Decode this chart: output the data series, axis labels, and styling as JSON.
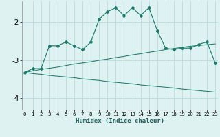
{
  "xlabel": "Humidex (Indice chaleur)",
  "background_color": "#dff2f2",
  "grid_color": "#c0dedd",
  "line_color": "#1e7a6a",
  "x_values": [
    0,
    1,
    2,
    3,
    4,
    5,
    6,
    7,
    8,
    9,
    10,
    11,
    12,
    13,
    14,
    15,
    16,
    17,
    18,
    19,
    20,
    21,
    22,
    23
  ],
  "curve1": [
    -3.32,
    -3.22,
    -3.22,
    -2.62,
    -2.62,
    -2.52,
    -2.62,
    -2.72,
    -2.52,
    -1.92,
    -1.72,
    -1.62,
    -1.82,
    -1.62,
    -1.82,
    -1.62,
    -2.22,
    -2.68,
    -2.72,
    -2.68,
    -2.68,
    -2.58,
    -2.52,
    -3.08
  ],
  "line_up": [
    -3.32,
    -3.28,
    -3.24,
    -3.21,
    -3.18,
    -3.14,
    -3.1,
    -3.07,
    -3.04,
    -3.0,
    -2.97,
    -2.93,
    -2.9,
    -2.86,
    -2.83,
    -2.79,
    -2.76,
    -2.72,
    -2.69,
    -2.66,
    -2.63,
    -2.61,
    -2.59,
    -2.57
  ],
  "line_down": [
    -3.32,
    -3.35,
    -3.37,
    -3.4,
    -3.42,
    -3.44,
    -3.46,
    -3.49,
    -3.51,
    -3.53,
    -3.56,
    -3.58,
    -3.6,
    -3.62,
    -3.65,
    -3.67,
    -3.69,
    -3.71,
    -3.73,
    -3.76,
    -3.78,
    -3.8,
    -3.82,
    -3.84
  ],
  "ylim": [
    -4.3,
    -1.45
  ],
  "xlim": [
    -0.3,
    23.3
  ],
  "yticks": [
    -4,
    -3,
    -2
  ],
  "ytick_labels": [
    "-4",
    "-3",
    "-2"
  ]
}
